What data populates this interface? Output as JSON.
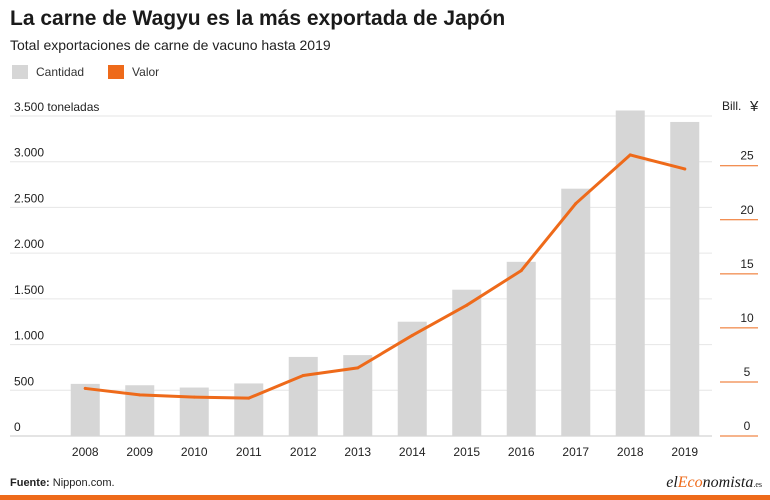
{
  "header": {
    "title": "La carne de Wagyu es la más exportada de Japón",
    "subtitle": "Total exportaciones de carne de vacuno hasta 2019"
  },
  "legend": {
    "items": [
      {
        "label": "Cantidad",
        "color": "#d6d6d6"
      },
      {
        "label": "Valor",
        "color": "#ee6a1a"
      }
    ]
  },
  "chart_data": {
    "type": "bar",
    "categories": [
      "2008",
      "2009",
      "2010",
      "2011",
      "2012",
      "2013",
      "2014",
      "2015",
      "2016",
      "2017",
      "2018",
      "2019"
    ],
    "series": [
      {
        "name": "Cantidad",
        "type": "bar",
        "axis": "left",
        "color": "#d6d6d6",
        "values": [
          570,
          555,
          530,
          575,
          865,
          885,
          1250,
          1600,
          1905,
          2705,
          3560,
          3435
        ]
      },
      {
        "name": "Valor",
        "type": "line",
        "axis": "right",
        "color": "#ee6a1a",
        "values": [
          4.4,
          3.8,
          3.6,
          3.5,
          5.6,
          6.3,
          9.3,
          12.1,
          15.3,
          21.5,
          26.0,
          24.7
        ]
      }
    ],
    "left_axis": {
      "label": "3.500 toneladas",
      "ylim": [
        0,
        3500
      ],
      "ticks": [
        0,
        500,
        1000,
        1500,
        2000,
        2500,
        3000,
        3500
      ],
      "tick_labels": [
        "0",
        "500",
        "1.000",
        "1.500",
        "2.000",
        "2.500",
        "3.000",
        "3.500 toneladas"
      ]
    },
    "right_axis": {
      "label": "Bill. ¥",
      "unit_prefix": "Bill.",
      "unit_symbol": "¥",
      "ylim": [
        0,
        29.6
      ],
      "ticks": [
        0,
        5,
        10,
        15,
        20,
        25
      ],
      "tick_labels": [
        "0",
        "5",
        "10",
        "15",
        "20",
        "25"
      ]
    },
    "grid": true
  },
  "footer": {
    "source_label": "Fuente:",
    "source": " Nippon.com."
  },
  "brand": {
    "part1": "el",
    "part2": "Eco",
    "part3": "nomista",
    "part4": ".es"
  }
}
